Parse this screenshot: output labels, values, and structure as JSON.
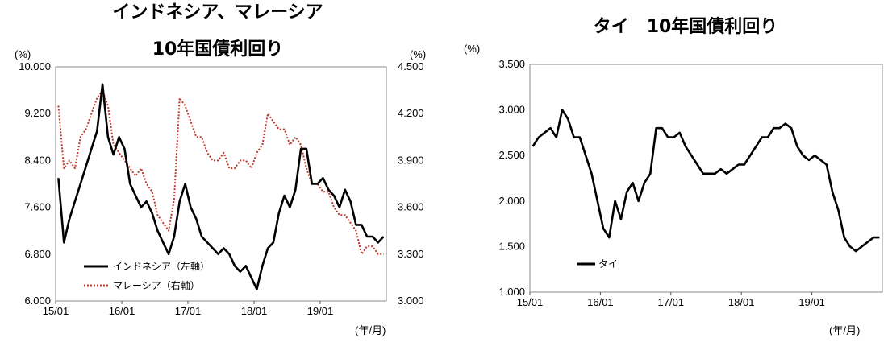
{
  "chart_data": [
    {
      "type": "line",
      "title": [
        "インドネシア、マレーシア",
        "10年国債利回り"
      ],
      "y_unit_left": "(%)",
      "y_unit_right": "(%)",
      "x_unit": "(年/月)",
      "x_ticks": [
        "15/01",
        "16/01",
        "17/01",
        "18/01",
        "19/01"
      ],
      "x_range": [
        "2015-01",
        "2019-12"
      ],
      "ylim_left": [
        6.0,
        10.0
      ],
      "yticks_left": [
        "10.000",
        "9.200",
        "8.400",
        "7.600",
        "6.800",
        "6.000"
      ],
      "ylim_right": [
        3.0,
        4.5
      ],
      "yticks_right": [
        "4.500",
        "4.200",
        "3.900",
        "3.600",
        "3.300",
        "3.000"
      ],
      "series": [
        {
          "name": "インドネシア（左軸）",
          "axis": "left",
          "color": "#000000",
          "style": "solid",
          "x": [
            "2015-01",
            "2015-02",
            "2015-03",
            "2015-04",
            "2015-05",
            "2015-06",
            "2015-07",
            "2015-08",
            "2015-09",
            "2015-10",
            "2015-11",
            "2015-12",
            "2016-01",
            "2016-02",
            "2016-03",
            "2016-04",
            "2016-05",
            "2016-06",
            "2016-07",
            "2016-08",
            "2016-09",
            "2016-10",
            "2016-11",
            "2016-12",
            "2017-01",
            "2017-02",
            "2017-03",
            "2017-04",
            "2017-05",
            "2017-06",
            "2017-07",
            "2017-08",
            "2017-09",
            "2017-10",
            "2017-11",
            "2017-12",
            "2018-01",
            "2018-02",
            "2018-03",
            "2018-04",
            "2018-05",
            "2018-06",
            "2018-07",
            "2018-08",
            "2018-09",
            "2018-10",
            "2018-11",
            "2018-12",
            "2019-01",
            "2019-02",
            "2019-03",
            "2019-04",
            "2019-05",
            "2019-06",
            "2019-07",
            "2019-08",
            "2019-09",
            "2019-10",
            "2019-11",
            "2019-12"
          ],
          "y": [
            8.1,
            7.0,
            7.4,
            7.7,
            8.0,
            8.3,
            8.6,
            8.9,
            9.7,
            8.8,
            8.5,
            8.8,
            8.6,
            8.0,
            7.8,
            7.6,
            7.7,
            7.5,
            7.2,
            7.0,
            6.8,
            7.1,
            7.7,
            8.0,
            7.6,
            7.4,
            7.1,
            7.0,
            6.9,
            6.8,
            6.9,
            6.8,
            6.6,
            6.5,
            6.6,
            6.4,
            6.2,
            6.6,
            6.9,
            7.0,
            7.5,
            7.8,
            7.6,
            7.9,
            8.6,
            8.6,
            8.0,
            8.0,
            8.1,
            7.9,
            7.8,
            7.6,
            7.9,
            7.7,
            7.3,
            7.3,
            7.1,
            7.1,
            7.0,
            7.1
          ]
        },
        {
          "name": "マレーシア（右軸）",
          "axis": "right",
          "color": "#c0392b",
          "style": "dotted",
          "x": [
            "2015-01",
            "2015-02",
            "2015-03",
            "2015-04",
            "2015-05",
            "2015-06",
            "2015-07",
            "2015-08",
            "2015-09",
            "2015-10",
            "2015-11",
            "2015-12",
            "2016-01",
            "2016-02",
            "2016-03",
            "2016-04",
            "2016-05",
            "2016-06",
            "2016-07",
            "2016-08",
            "2016-09",
            "2016-10",
            "2016-11",
            "2016-12",
            "2017-01",
            "2017-02",
            "2017-03",
            "2017-04",
            "2017-05",
            "2017-06",
            "2017-07",
            "2017-08",
            "2017-09",
            "2017-10",
            "2017-11",
            "2017-12",
            "2018-01",
            "2018-02",
            "2018-03",
            "2018-04",
            "2018-05",
            "2018-06",
            "2018-07",
            "2018-08",
            "2018-09",
            "2018-10",
            "2018-11",
            "2018-12",
            "2019-01",
            "2019-02",
            "2019-03",
            "2019-04",
            "2019-05",
            "2019-06",
            "2019-07",
            "2019-08",
            "2019-09",
            "2019-10",
            "2019-11",
            "2019-12"
          ],
          "y": [
            4.25,
            3.85,
            3.9,
            3.85,
            4.05,
            4.1,
            4.2,
            4.3,
            4.35,
            4.25,
            4.0,
            3.95,
            3.9,
            3.85,
            3.8,
            3.85,
            3.75,
            3.7,
            3.55,
            3.5,
            3.45,
            3.65,
            4.3,
            4.25,
            4.15,
            4.05,
            4.05,
            3.95,
            3.9,
            3.9,
            3.95,
            3.85,
            3.85,
            3.9,
            3.9,
            3.85,
            3.95,
            4.0,
            4.2,
            4.15,
            4.1,
            4.1,
            4.0,
            4.05,
            4.0,
            3.85,
            3.75,
            3.75,
            3.7,
            3.7,
            3.6,
            3.55,
            3.55,
            3.5,
            3.45,
            3.3,
            3.35,
            3.35,
            3.3,
            3.3
          ]
        }
      ],
      "legend_placement": "bottom-left"
    },
    {
      "type": "line",
      "title": [
        "タイ　10年国債利回り"
      ],
      "y_unit_left": "(%)",
      "x_unit": "(年/月)",
      "x_ticks": [
        "15/01",
        "16/01",
        "17/01",
        "18/01",
        "19/01"
      ],
      "x_range": [
        "2015-01",
        "2019-12"
      ],
      "ylim_left": [
        1.0,
        3.5
      ],
      "yticks_left": [
        "3.500",
        "3.000",
        "2.500",
        "2.000",
        "1.500",
        "1.000"
      ],
      "series": [
        {
          "name": "タイ",
          "axis": "left",
          "color": "#000000",
          "style": "solid",
          "x": [
            "2015-01",
            "2015-02",
            "2015-03",
            "2015-04",
            "2015-05",
            "2015-06",
            "2015-07",
            "2015-08",
            "2015-09",
            "2015-10",
            "2015-11",
            "2015-12",
            "2016-01",
            "2016-02",
            "2016-03",
            "2016-04",
            "2016-05",
            "2016-06",
            "2016-07",
            "2016-08",
            "2016-09",
            "2016-10",
            "2016-11",
            "2016-12",
            "2017-01",
            "2017-02",
            "2017-03",
            "2017-04",
            "2017-05",
            "2017-06",
            "2017-07",
            "2017-08",
            "2017-09",
            "2017-10",
            "2017-11",
            "2017-12",
            "2018-01",
            "2018-02",
            "2018-03",
            "2018-04",
            "2018-05",
            "2018-06",
            "2018-07",
            "2018-08",
            "2018-09",
            "2018-10",
            "2018-11",
            "2018-12",
            "2019-01",
            "2019-02",
            "2019-03",
            "2019-04",
            "2019-05",
            "2019-06",
            "2019-07",
            "2019-08",
            "2019-09",
            "2019-10",
            "2019-11",
            "2019-12"
          ],
          "y": [
            2.6,
            2.7,
            2.75,
            2.8,
            2.7,
            3.0,
            2.9,
            2.7,
            2.7,
            2.5,
            2.3,
            2.0,
            1.7,
            1.6,
            2.0,
            1.8,
            2.1,
            2.2,
            2.0,
            2.2,
            2.3,
            2.8,
            2.8,
            2.7,
            2.7,
            2.75,
            2.6,
            2.5,
            2.4,
            2.3,
            2.3,
            2.3,
            2.35,
            2.3,
            2.35,
            2.4,
            2.4,
            2.5,
            2.6,
            2.7,
            2.7,
            2.8,
            2.8,
            2.85,
            2.8,
            2.6,
            2.5,
            2.45,
            2.5,
            2.45,
            2.4,
            2.1,
            1.9,
            1.6,
            1.5,
            1.45,
            1.5,
            1.55,
            1.6,
            1.6
          ]
        }
      ],
      "legend_placement": "bottom-left"
    }
  ]
}
